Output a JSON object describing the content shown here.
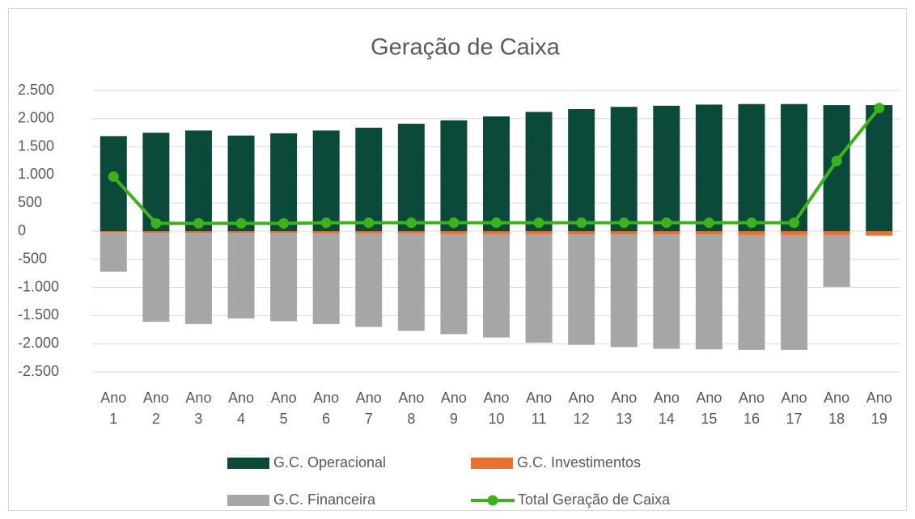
{
  "chart_data": {
    "type": "bar",
    "title": "Geração de Caixa",
    "categories": [
      "Ano 1",
      "Ano 2",
      "Ano 3",
      "Ano 4",
      "Ano 5",
      "Ano 6",
      "Ano 7",
      "Ano 8",
      "Ano 9",
      "Ano 10",
      "Ano 11",
      "Ano 12",
      "Ano 13",
      "Ano 14",
      "Ano 15",
      "Ano 16",
      "Ano 17",
      "Ano 18",
      "Ano 19"
    ],
    "series": [
      {
        "name": "G.C. Operacional",
        "type": "bar",
        "color": "#0b4a3b",
        "values": [
          1690,
          1750,
          1790,
          1700,
          1740,
          1790,
          1840,
          1910,
          1970,
          2040,
          2120,
          2170,
          2210,
          2230,
          2250,
          2260,
          2260,
          2240,
          2240
        ]
      },
      {
        "name": "G.C. Investimentos",
        "type": "bar",
        "color": "#e97132",
        "values": [
          -20,
          -30,
          -30,
          -30,
          -30,
          -40,
          -40,
          -40,
          -50,
          -50,
          -50,
          -60,
          -60,
          -60,
          -60,
          -70,
          -70,
          -70,
          -80
        ]
      },
      {
        "name": "G.C. Financeira",
        "type": "bar",
        "color": "#a6a6a6",
        "values": [
          -700,
          -1580,
          -1620,
          -1520,
          -1570,
          -1610,
          -1660,
          -1730,
          -1780,
          -1840,
          -1930,
          -1960,
          -2000,
          -2030,
          -2040,
          -2040,
          -2040,
          -920,
          0
        ]
      },
      {
        "name": "Total Geração de Caixa",
        "type": "line",
        "color": "#3cb21c",
        "values": [
          970,
          140,
          140,
          140,
          140,
          150,
          150,
          150,
          150,
          150,
          150,
          150,
          150,
          150,
          150,
          150,
          150,
          1250,
          2190
        ]
      }
    ],
    "ylim": [
      -2500,
      2500
    ],
    "yticks": [
      {
        "value": -2500,
        "label": "-2.500"
      },
      {
        "value": -2000,
        "label": "-2.000"
      },
      {
        "value": -1500,
        "label": "-1.500"
      },
      {
        "value": -1000,
        "label": "-1.000"
      },
      -500,
      0,
      500,
      {
        "value": 1000,
        "label": "1.000"
      },
      {
        "value": 1500,
        "label": "1.500"
      },
      {
        "value": 2000,
        "label": "2.000"
      },
      {
        "value": 2500,
        "label": "2.500"
      }
    ],
    "grid": true,
    "legend": "bottom"
  }
}
